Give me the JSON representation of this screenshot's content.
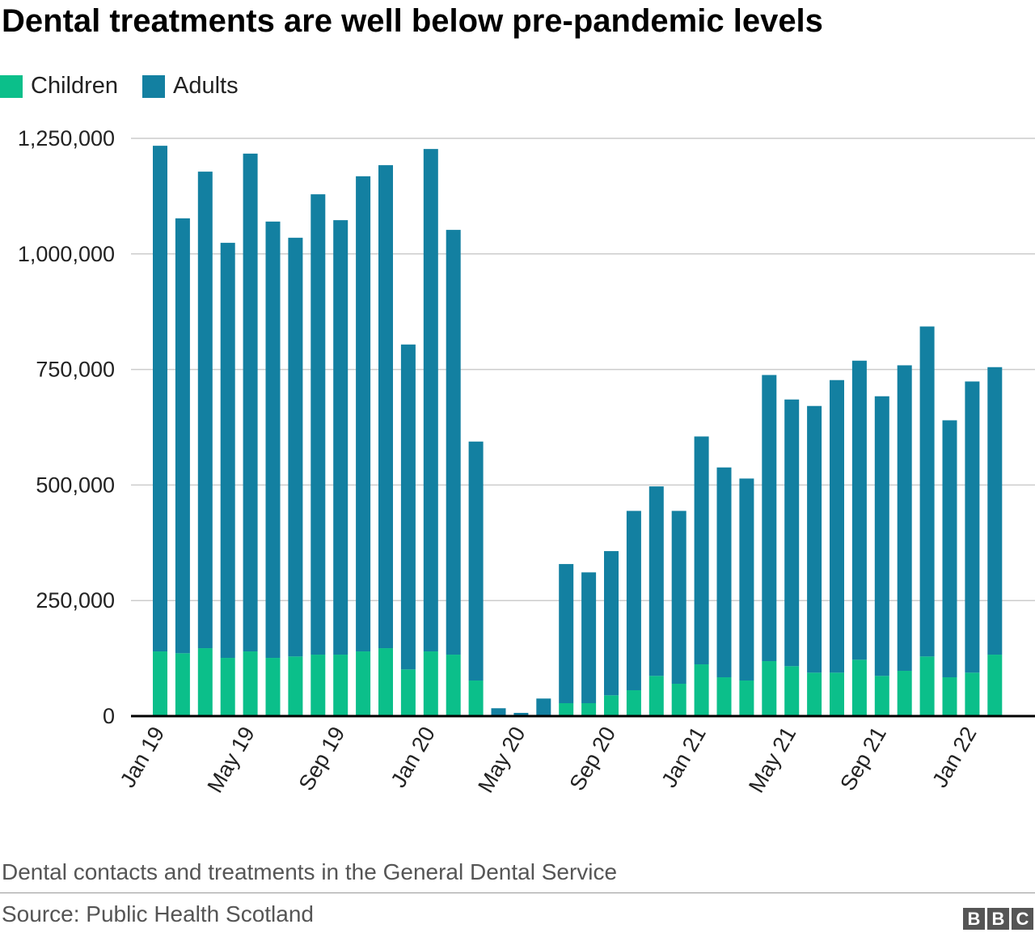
{
  "chart_data": {
    "type": "bar",
    "stacked": true,
    "title": "Dental treatments are well below pre-pandemic levels",
    "xlabel": "",
    "ylabel": "",
    "ylim": [
      0,
      1250000
    ],
    "yticks": [
      "0",
      "250,000",
      "500,000",
      "750,000",
      "1,000,000",
      "1,250,000"
    ],
    "ytick_values": [
      0,
      250000,
      500000,
      750000,
      1000000,
      1250000
    ],
    "grid": true,
    "legend_position": "top-left",
    "categories": [
      "Jan 19",
      "Feb 19",
      "Mar 19",
      "Apr 19",
      "May 19",
      "Jun 19",
      "Jul 19",
      "Aug 19",
      "Sep 19",
      "Oct 19",
      "Nov 19",
      "Dec 19",
      "Jan 20",
      "Feb 20",
      "Mar 20",
      "Apr 20",
      "May 20",
      "Jun 20",
      "Jul 20",
      "Aug 20",
      "Sep 20",
      "Oct 20",
      "Nov 20",
      "Dec 20",
      "Jan 21",
      "Feb 21",
      "Mar 21",
      "Apr 21",
      "May 21",
      "Jun 21",
      "Jul 21",
      "Aug 21",
      "Sep 21",
      "Oct 21",
      "Nov 21",
      "Dec 21",
      "Jan 22",
      "Feb 22"
    ],
    "xtick_labels": [
      "Jan 19",
      "May 19",
      "Sep 19",
      "Jan 20",
      "May 20",
      "Sep 20",
      "Jan 21",
      "May 21",
      "Sep 21",
      "Jan 22"
    ],
    "series": [
      {
        "name": "Children",
        "color": "#0bbf8a",
        "values": [
          140000,
          136000,
          147000,
          126000,
          140000,
          126000,
          129000,
          133000,
          133000,
          140000,
          147000,
          101000,
          140000,
          133000,
          77000,
          2000,
          1000,
          2000,
          28000,
          28000,
          45000,
          56000,
          87000,
          70000,
          112000,
          84000,
          77000,
          119000,
          108000,
          94000,
          94000,
          122000,
          87000,
          98000,
          129000,
          84000,
          94000,
          133000
        ]
      },
      {
        "name": "Adults",
        "color": "#1380a1",
        "values": [
          1094000,
          941000,
          1031000,
          898000,
          1077000,
          944000,
          906000,
          996000,
          940000,
          1028000,
          1045000,
          703000,
          1087000,
          919000,
          517000,
          15000,
          6000,
          36000,
          301000,
          283000,
          312000,
          388000,
          410000,
          374000,
          493000,
          454000,
          437000,
          619000,
          577000,
          577000,
          633000,
          647000,
          605000,
          661000,
          714000,
          556000,
          630000,
          622000
        ]
      }
    ]
  },
  "footer": {
    "note": "Dental contacts and treatments in the General Dental Service",
    "source": "Source: Public Health Scotland",
    "logo": "BBC"
  }
}
